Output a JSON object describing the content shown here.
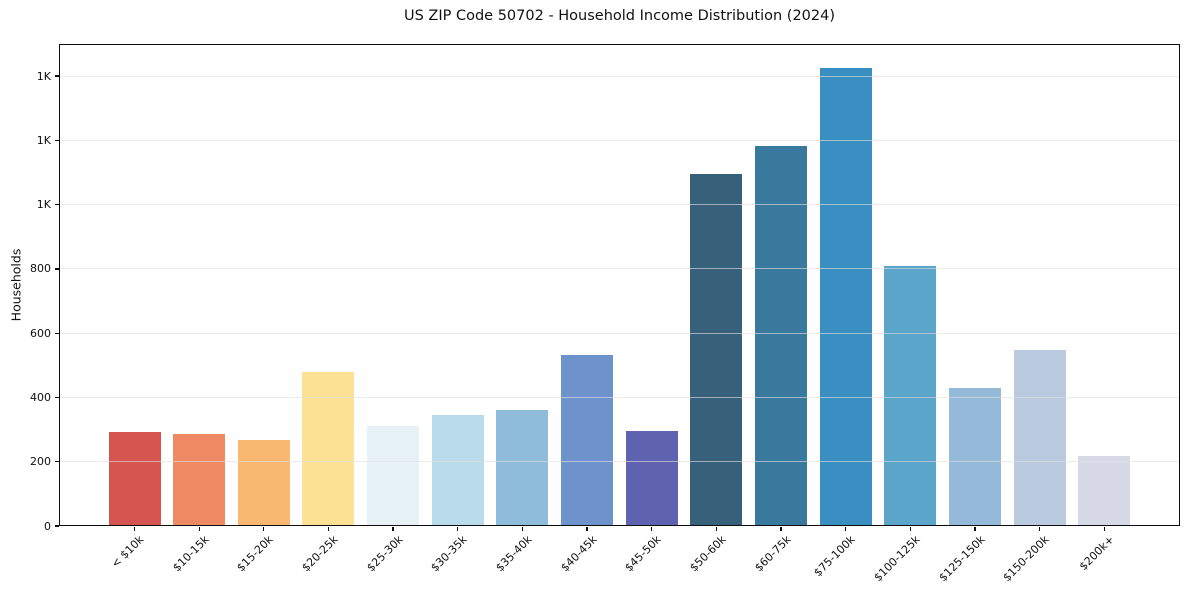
{
  "chart_data": {
    "type": "bar",
    "title": "US ZIP Code 50702 - Household Income Distribution (2024)",
    "xlabel": "",
    "ylabel": "Households",
    "categories": [
      "< $10k",
      "$10-15k",
      "$15-20k",
      "$20-25k",
      "$25-30k",
      "$30-35k",
      "$35-40k",
      "$40-45k",
      "$45-50k",
      "$50-60k",
      "$60-75k",
      "$75-100k",
      "$100-125k",
      "$125-150k",
      "$150-200k",
      "$200k+"
    ],
    "values": [
      293,
      286,
      268,
      480,
      310,
      345,
      360,
      531,
      296,
      1096,
      1184,
      1426,
      810,
      428,
      549,
      217
    ],
    "bar_colors": [
      "#d6544f",
      "#f08a64",
      "#f9b871",
      "#fde295",
      "#e7f2f6",
      "#badbe9",
      "#90bcdc",
      "#6e92cb",
      "#5f62ae",
      "#37607a",
      "#38799d",
      "#398fc2",
      "#5ba4ca",
      "#94b9d9",
      "#b9cade",
      "#d7d9e6"
    ],
    "ylim": [
      0,
      1500
    ],
    "y_ticks": [
      {
        "value": 0,
        "label": "0"
      },
      {
        "value": 200,
        "label": "200"
      },
      {
        "value": 400,
        "label": "400"
      },
      {
        "value": 600,
        "label": "600"
      },
      {
        "value": 800,
        "label": "800"
      },
      {
        "value": 1000,
        "label": "1K"
      },
      {
        "value": 1200,
        "label": "1K"
      },
      {
        "value": 1400,
        "label": "1K"
      }
    ],
    "grid": "horizontal",
    "legend": "none"
  }
}
